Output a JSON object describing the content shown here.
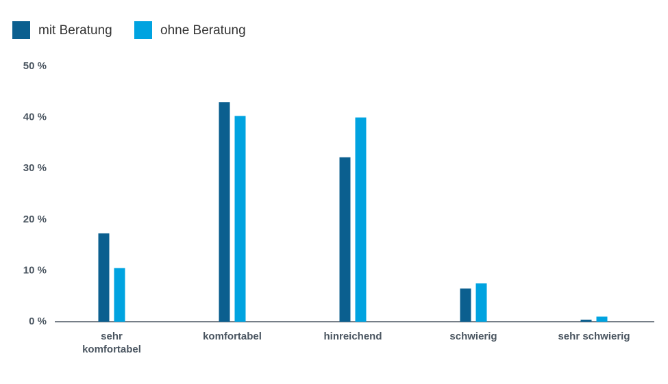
{
  "chart_data": {
    "type": "bar",
    "categories": [
      "sehr komfortabel",
      "komfortabel",
      "hinreichend",
      "schwierig",
      "sehr schwierig"
    ],
    "series": [
      {
        "name": "mit Beratung",
        "color": "#0b5f8f",
        "values": [
          17.3,
          43,
          32.2,
          6.5,
          0.4
        ]
      },
      {
        "name": "ohne Beratung",
        "color": "#00a3e0",
        "values": [
          10.5,
          40.3,
          40,
          7.5,
          1
        ]
      }
    ],
    "ylim": [
      0,
      50
    ],
    "yticks": [
      {
        "value": 0,
        "label": "0 %"
      },
      {
        "value": 10,
        "label": "10 %"
      },
      {
        "value": 20,
        "label": "20 %"
      },
      {
        "value": 30,
        "label": "30 %"
      },
      {
        "value": 40,
        "label": "40 %"
      },
      {
        "value": 50,
        "label": "50 %"
      }
    ],
    "grid": false,
    "legend": "top-left"
  }
}
